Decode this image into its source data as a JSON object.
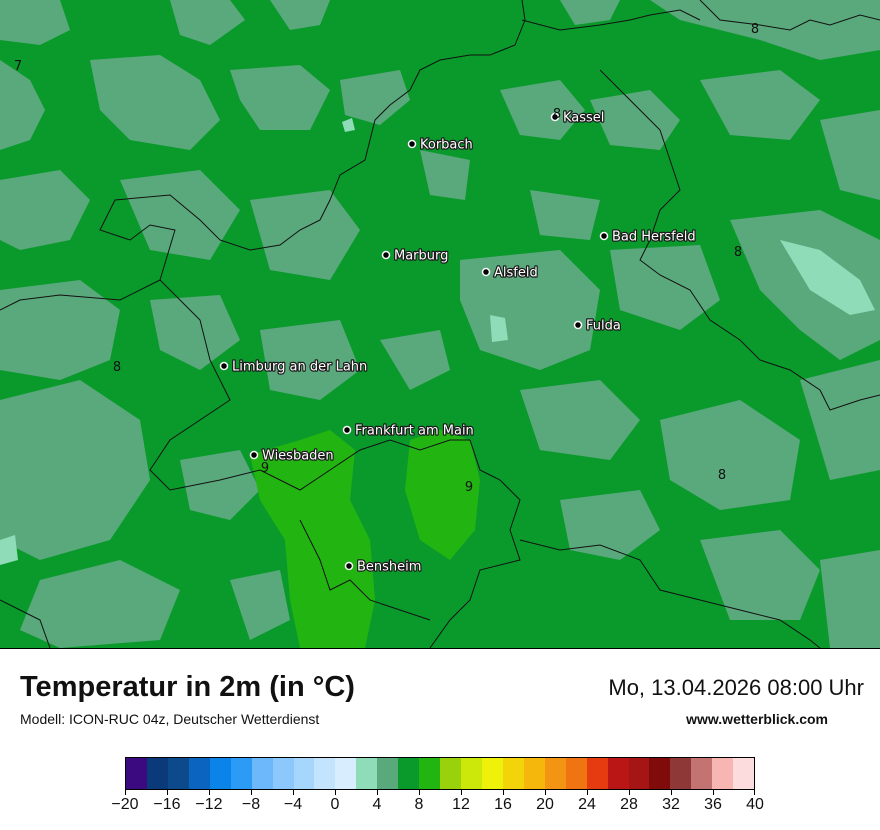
{
  "map": {
    "cities": [
      {
        "name": "Kassel"
      },
      {
        "name": "Korbach"
      },
      {
        "name": "Bad Hersfeld"
      },
      {
        "name": "Marburg"
      },
      {
        "name": "Alsfeld"
      },
      {
        "name": "Fulda"
      },
      {
        "name": "Limburg an der Lahn"
      },
      {
        "name": "Frankfurt am Main"
      },
      {
        "name": "Wiesbaden"
      },
      {
        "name": "Bensheim"
      }
    ],
    "isolines": [
      "7",
      "8",
      "8",
      "8",
      "8",
      "8",
      "9",
      "9"
    ]
  },
  "footer": {
    "title": "Temperatur in 2m (in °C)",
    "model": "Modell: ICON-RUC 04z, Deutscher Wetterdienst",
    "datetime": "Mo, 13.04.2026 08:00 Uhr",
    "website": "www.wetterblick.com"
  },
  "colorbar": {
    "colors": [
      "#3b0a80",
      "#0a3a7a",
      "#0d4a8c",
      "#0b65c0",
      "#0a84e8",
      "#2b9bf5",
      "#6cb8fa",
      "#8cc8fb",
      "#a6d6fc",
      "#c4e4fd",
      "#d8edfd",
      "#8fdcb8",
      "#5aa97c",
      "#0a9a2c",
      "#22b512",
      "#99d20a",
      "#cbe80a",
      "#eef20a",
      "#f3d40b",
      "#f5b70c",
      "#f39412",
      "#f07411",
      "#e63a10",
      "#bb1616",
      "#a51515",
      "#7f0b0b",
      "#8f3838",
      "#c47373",
      "#f8b6b3",
      "#fcdcdc"
    ],
    "ticks": [
      "−20",
      "−16",
      "−12",
      "−8",
      "−4",
      "0",
      "4",
      "8",
      "12",
      "16",
      "20",
      "24",
      "28",
      "32",
      "36",
      "40"
    ]
  },
  "colors": {
    "field_8": "#0a9a2c",
    "field_7": "#5aa97c",
    "field_6": "#8fdcb8",
    "field_9": "#22b512"
  }
}
